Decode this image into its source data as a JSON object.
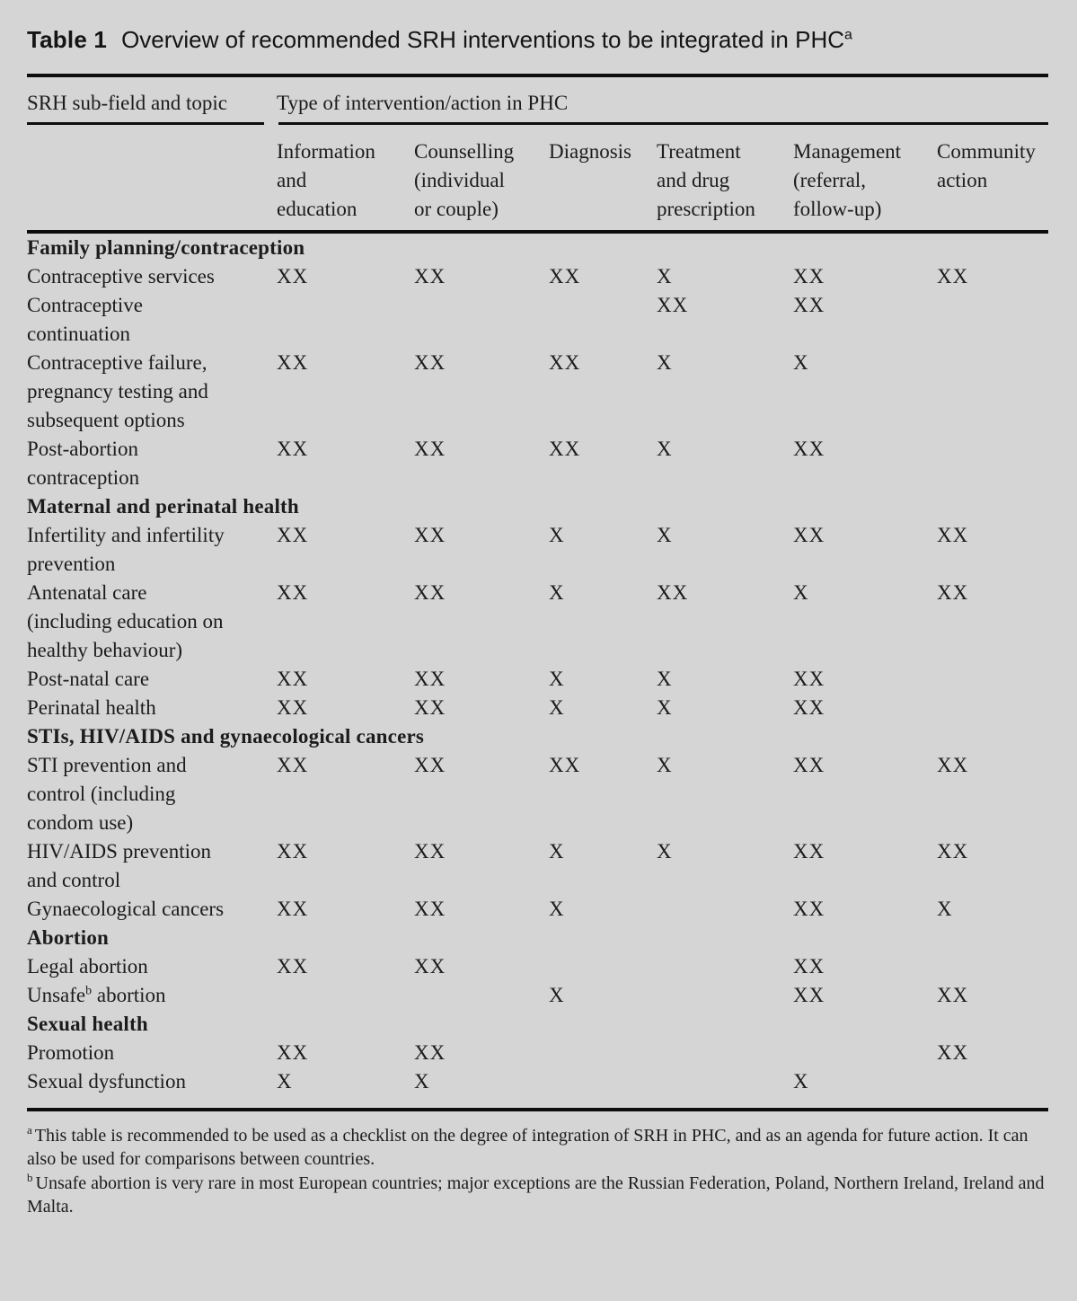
{
  "title": {
    "prefix": "Table 1",
    "text": "Overview of recommended SRH interventions to be integrated in PHC",
    "superscript": "a"
  },
  "table": {
    "row_header": "SRH sub-field and topic",
    "group_header": "Type of intervention/action in PHC",
    "columns": [
      "Information\nand\neducation",
      "Counselling\n(individual\nor couple)",
      "Diagnosis",
      "Treatment\nand drug\nprescription",
      "Management\n(referral,\nfollow-up)",
      "Community\naction"
    ],
    "sections": [
      {
        "name": "Family planning/contraception",
        "rows": [
          {
            "label": "Contraceptive services",
            "marks": [
              "XX",
              "XX",
              "XX",
              "X",
              "XX",
              "XX"
            ]
          },
          {
            "label": "Contraceptive\ncontinuation",
            "marks": [
              "",
              "",
              "",
              "XX",
              "XX",
              ""
            ]
          },
          {
            "label": "Contraceptive failure,\npregnancy testing and\nsubsequent options",
            "marks": [
              "XX",
              "XX",
              "XX",
              "X",
              "X",
              ""
            ]
          },
          {
            "label": "Post-abortion\ncontraception",
            "marks": [
              "XX",
              "XX",
              "XX",
              "X",
              "XX",
              ""
            ]
          }
        ]
      },
      {
        "name": "Maternal and perinatal health",
        "rows": [
          {
            "label": "Infertility and infertility\nprevention",
            "marks": [
              "XX",
              "XX",
              "X",
              "X",
              "XX",
              "XX"
            ]
          },
          {
            "label": "Antenatal care\n(including education on\nhealthy behaviour)",
            "marks": [
              "XX",
              "XX",
              "X",
              "XX",
              "X",
              "XX"
            ]
          },
          {
            "label": "Post-natal care",
            "marks": [
              "XX",
              "XX",
              "X",
              "X",
              "XX",
              ""
            ]
          },
          {
            "label": "Perinatal health",
            "marks": [
              "XX",
              "XX",
              "X",
              "X",
              "XX",
              ""
            ]
          }
        ]
      },
      {
        "name": "STIs, HIV/AIDS and gynaecological cancers",
        "rows": [
          {
            "label": "STI prevention and\ncontrol (including\ncondom use)",
            "marks": [
              "XX",
              "XX",
              "XX",
              "X",
              "XX",
              "XX"
            ]
          },
          {
            "label": "HIV/AIDS prevention\nand control",
            "marks": [
              "XX",
              "XX",
              "X",
              "X",
              "XX",
              "XX"
            ]
          },
          {
            "label": "Gynaecological cancers",
            "marks": [
              "XX",
              "XX",
              "X",
              "",
              "XX",
              "X"
            ]
          }
        ]
      },
      {
        "name": "Abortion",
        "rows": [
          {
            "label": "Legal abortion",
            "marks": [
              "XX",
              "XX",
              "",
              "",
              "XX",
              ""
            ]
          },
          {
            "label": "Unsafe",
            "label_sup": "b",
            "label_post": " abortion",
            "marks": [
              "",
              "",
              "X",
              "",
              "XX",
              "XX"
            ]
          }
        ]
      },
      {
        "name": "Sexual health",
        "rows": [
          {
            "label": "Promotion",
            "marks": [
              "XX",
              "XX",
              "",
              "",
              "",
              "XX"
            ]
          },
          {
            "label": "Sexual dysfunction",
            "marks": [
              "X",
              "X",
              "",
              "",
              "X",
              ""
            ]
          }
        ]
      }
    ]
  },
  "footnotes": [
    {
      "marker": "a",
      "text": "This table is recommended to be used as a checklist on the degree of integration of SRH in PHC, and as an agenda for future action. It can also be used for comparisons between countries."
    },
    {
      "marker": "b",
      "text": "Unsafe abortion is very rare in most European countries; major exceptions are the Russian Federation, Poland, Northern Ireland, Ireland and Malta."
    }
  ],
  "colors": {
    "background": "#d5d5d6",
    "text": "#1c1c1c",
    "rule": "#0d0d0d"
  }
}
